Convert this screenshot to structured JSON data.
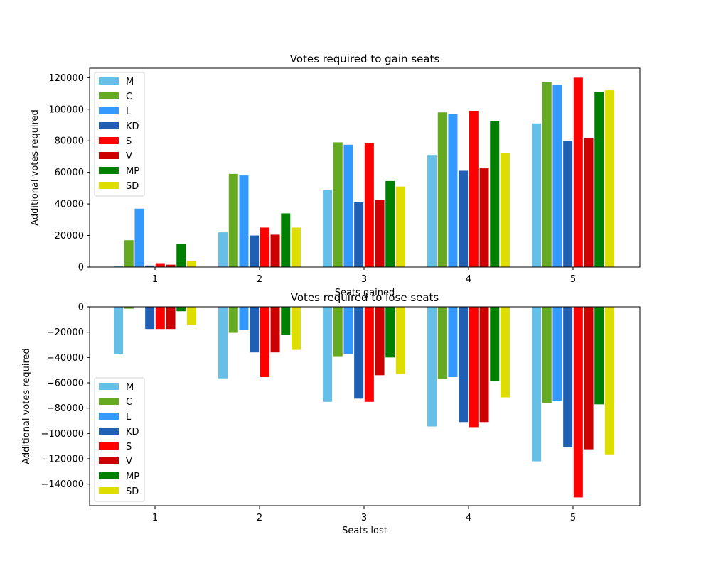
{
  "chart_data": [
    {
      "type": "bar",
      "title": "Votes required to gain seats",
      "xlabel": "Seats gained",
      "ylabel": "Additional votes required",
      "categories": [
        "1",
        "2",
        "3",
        "4",
        "5"
      ],
      "ylim": [
        0,
        126000
      ],
      "yticks": [
        0,
        20000,
        40000,
        60000,
        80000,
        100000,
        120000
      ],
      "ytick_labels": [
        "0",
        "20000",
        "40000",
        "60000",
        "80000",
        "100000",
        "120000"
      ],
      "legend_position": "upper-left",
      "grid": false,
      "series": [
        {
          "name": "M",
          "color": "#66bfe6",
          "values": [
            800,
            22000,
            49000,
            71000,
            91000
          ]
        },
        {
          "name": "C",
          "color": "#66aa22",
          "values": [
            17000,
            59000,
            79000,
            98000,
            117000
          ]
        },
        {
          "name": "L",
          "color": "#3399ff",
          "values": [
            37000,
            58000,
            77500,
            97000,
            115500
          ]
        },
        {
          "name": "KD",
          "color": "#1f5fb4",
          "values": [
            1000,
            20000,
            41000,
            61000,
            80000
          ]
        },
        {
          "name": "S",
          "color": "#ff0000",
          "values": [
            2000,
            25000,
            78500,
            99000,
            120000
          ]
        },
        {
          "name": "V",
          "color": "#cc0000",
          "values": [
            1500,
            20500,
            42500,
            62500,
            81500
          ]
        },
        {
          "name": "MP",
          "color": "#008000",
          "values": [
            14500,
            34000,
            54500,
            92500,
            111000
          ]
        },
        {
          "name": "SD",
          "color": "#dddd00",
          "values": [
            4000,
            25000,
            51000,
            72000,
            112000
          ]
        }
      ]
    },
    {
      "type": "bar",
      "title": "Votes required to lose seats",
      "xlabel": "Seats lost",
      "ylabel": "Additional votes required",
      "categories": [
        "1",
        "2",
        "3",
        "4",
        "5"
      ],
      "ylim": [
        -157000,
        0
      ],
      "yticks": [
        0,
        -20000,
        -40000,
        -60000,
        -80000,
        -100000,
        -120000,
        -140000
      ],
      "ytick_labels": [
        "0",
        "−20000",
        "−40000",
        "−60000",
        "−80000",
        "−100000",
        "−120000",
        "−140000"
      ],
      "legend_position": "lower-left",
      "grid": false,
      "series": [
        {
          "name": "M",
          "color": "#66bfe6",
          "values": [
            -37000,
            -56500,
            -75000,
            -94500,
            -122000
          ]
        },
        {
          "name": "C",
          "color": "#66aa22",
          "values": [
            -1500,
            -20500,
            -39000,
            -57000,
            -76000
          ]
        },
        {
          "name": "L",
          "color": "#3399ff",
          "values": [
            -200,
            -18500,
            -37500,
            -55500,
            -74000
          ]
        },
        {
          "name": "KD",
          "color": "#1f5fb4",
          "values": [
            -17500,
            -36000,
            -72500,
            -91000,
            -111000
          ]
        },
        {
          "name": "S",
          "color": "#ff0000",
          "values": [
            -17500,
            -55500,
            -75000,
            -95000,
            -150500
          ]
        },
        {
          "name": "V",
          "color": "#cc0000",
          "values": [
            -17500,
            -36000,
            -54000,
            -91000,
            -112500
          ]
        },
        {
          "name": "MP",
          "color": "#008000",
          "values": [
            -3500,
            -22000,
            -40000,
            -58500,
            -77000
          ]
        },
        {
          "name": "SD",
          "color": "#dddd00",
          "values": [
            -14500,
            -34000,
            -53000,
            -71500,
            -116500
          ]
        }
      ]
    }
  ]
}
